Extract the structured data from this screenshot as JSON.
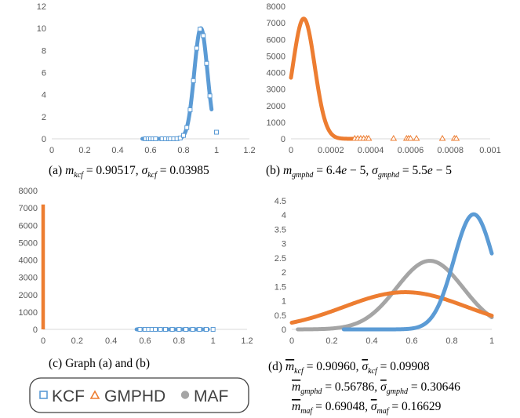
{
  "chart_data": [
    {
      "id": "a",
      "type": "line",
      "caption": "(a) m_kcf = 0.90517, σ_kcf = 0.03985",
      "xlim": [
        0,
        1.2
      ],
      "xticks": [
        0,
        0.2,
        0.4,
        0.6,
        0.8,
        1,
        1.2
      ],
      "ylim": [
        0,
        12
      ],
      "yticks": [
        0,
        2,
        4,
        6,
        8,
        10,
        12
      ],
      "series": [
        {
          "name": "KCF",
          "kind": "normal",
          "mean": 0.90517,
          "sd": 0.03985,
          "xmin": 0.55,
          "xmax": 0.97,
          "color": "#5b9bd5",
          "markers": [
            0.57,
            0.585,
            0.6,
            0.615,
            0.63,
            0.67,
            0.69,
            0.71,
            0.72,
            0.74,
            0.76,
            0.78,
            0.8,
            0.82,
            0.84,
            0.86,
            0.88,
            0.9,
            0.92,
            0.94,
            0.96
          ],
          "outliers": [
            {
              "x": 1.0,
              "y": 0.6
            }
          ]
        }
      ]
    },
    {
      "id": "b",
      "type": "line",
      "caption": "(b) m_gmphd = 6.4e − 5, σ_gmphd = 5.5e − 5",
      "xlim": [
        0,
        0.001
      ],
      "xticks": [
        0,
        0.0002,
        0.0004,
        0.0006,
        0.0008,
        0.001
      ],
      "ylim": [
        0,
        8000
      ],
      "yticks": [
        0,
        1000,
        2000,
        3000,
        4000,
        5000,
        6000,
        7000,
        8000
      ],
      "series": [
        {
          "name": "GMPHD",
          "kind": "normal",
          "mean": 6.4e-05,
          "sd": 5.5e-05,
          "xmin": 0,
          "xmax": 0.00036,
          "color": "#ed7d31",
          "markers": [
            0.00032,
            0.000335,
            0.00035,
            0.000365,
            0.00038,
            0.00039,
            0.000515,
            0.00058,
            0.00059,
            0.0006,
            0.00063,
            0.00076,
            0.00082,
            0.00083
          ]
        }
      ]
    },
    {
      "id": "c",
      "type": "line",
      "caption": "(c) Graph (a) and (b)",
      "xlim": [
        0,
        1.2
      ],
      "xticks": [
        0,
        0.2,
        0.4,
        0.6,
        0.8,
        1,
        1.2
      ],
      "ylim": [
        0,
        8000
      ],
      "yticks": [
        0,
        1000,
        2000,
        3000,
        4000,
        5000,
        6000,
        7000,
        8000
      ],
      "series": [
        {
          "name": "GMPHD",
          "kind": "vertical",
          "x": 0,
          "ymax": 7200,
          "color": "#ed7d31"
        },
        {
          "name": "KCF",
          "kind": "normal-scaled",
          "mean": 0.90517,
          "sd": 0.03985,
          "xmin": 0.55,
          "xmax": 0.97,
          "color": "#5b9bd5",
          "markers": [
            0.57,
            0.6,
            0.62,
            0.64,
            0.66,
            0.69,
            0.72,
            0.76,
            0.8,
            0.84,
            0.88,
            0.92,
            0.96,
            1.0
          ]
        }
      ]
    },
    {
      "id": "d",
      "type": "line",
      "caption_lines": [
        "(d) m̅_kcf = 0.90960, σ̅_kcf = 0.09908",
        "m̅_gmphd = 0.56786, σ̅_gmphd = 0.30646",
        "m̅_maf = 0.69048, σ̅_maf = 0.16629"
      ],
      "xlim": [
        0,
        1
      ],
      "xticks": [
        0,
        0.2,
        0.4,
        0.6,
        0.8,
        1
      ],
      "ylim": [
        0,
        4.5
      ],
      "yticks": [
        0,
        0.5,
        1,
        1.5,
        2,
        2.5,
        3,
        3.5,
        4,
        4.5
      ],
      "series": [
        {
          "name": "MAF",
          "kind": "normal",
          "mean": 0.69048,
          "sd": 0.16629,
          "xmin": 0.03,
          "xmax": 1,
          "color": "#a5a5a5"
        },
        {
          "name": "GMPHD",
          "kind": "normal",
          "mean": 0.56786,
          "sd": 0.30646,
          "xmin": 0,
          "xmax": 1,
          "color": "#ed7d31"
        },
        {
          "name": "KCF",
          "kind": "normal",
          "mean": 0.9096,
          "sd": 0.09908,
          "xmin": 0.26,
          "xmax": 1,
          "color": "#5b9bd5"
        }
      ]
    }
  ],
  "legend": {
    "placement": "bottom-left",
    "items": [
      {
        "label": "KCF",
        "marker": "square",
        "color": "#5b9bd5"
      },
      {
        "label": "GMPHD",
        "marker": "triangle",
        "color": "#ed7d31"
      },
      {
        "label": "MAF",
        "marker": "circle",
        "color": "#a5a5a5"
      }
    ]
  }
}
